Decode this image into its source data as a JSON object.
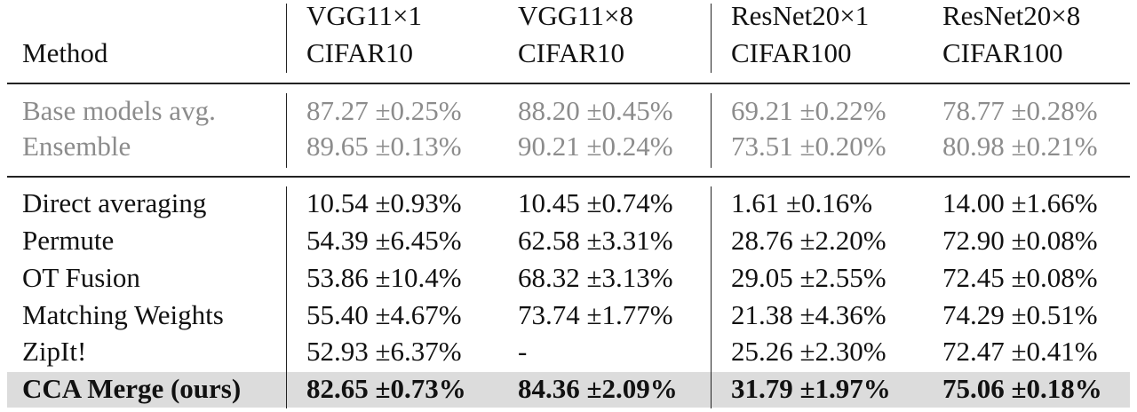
{
  "header": {
    "method_label": "Method",
    "columns": [
      {
        "model": "VGG11×1",
        "dataset": "CIFAR10"
      },
      {
        "model": "VGG11×8",
        "dataset": "CIFAR10"
      },
      {
        "model": "ResNet20×1",
        "dataset": "CIFAR100"
      },
      {
        "model": "ResNet20×8",
        "dataset": "CIFAR100"
      }
    ]
  },
  "reference_rows": [
    {
      "method": "Base models avg.",
      "values": [
        "87.27 ±0.25%",
        "88.20 ±0.45%",
        "69.21 ±0.22%",
        "78.77 ±0.28%"
      ]
    },
    {
      "method": "Ensemble",
      "values": [
        "89.65 ±0.13%",
        "90.21 ±0.24%",
        "73.51 ±0.20%",
        "80.98 ±0.21%"
      ]
    }
  ],
  "method_rows": [
    {
      "method": "Direct averaging",
      "values": [
        "10.54 ±0.93%",
        "10.45 ±0.74%",
        "1.61 ±0.16%",
        "14.00 ±1.66%"
      ]
    },
    {
      "method": "Permute",
      "values": [
        "54.39 ±6.45%",
        "62.58 ±3.31%",
        "28.76 ±2.20%",
        "72.90 ±0.08%"
      ]
    },
    {
      "method": "OT Fusion",
      "values": [
        "53.86 ±10.4%",
        "68.32 ±3.13%",
        "29.05 ±2.55%",
        "72.45 ±0.08%"
      ]
    },
    {
      "method": "Matching Weights",
      "values": [
        "55.40 ±4.67%",
        "73.74 ±1.77%",
        "21.38 ±4.36%",
        "74.29 ±0.51%"
      ]
    },
    {
      "method": "ZipIt!",
      "values": [
        "52.93 ±6.37%",
        "-",
        "25.26 ±2.30%",
        "72.47 ±0.41%"
      ]
    }
  ],
  "highlight_row": {
    "method": "CCA Merge (ours)",
    "values": [
      "82.65 ±0.73%",
      "84.36 ±2.09%",
      "31.79 ±1.97%",
      "75.06 ±0.18%"
    ]
  },
  "colors": {
    "text": "#111111",
    "reference_text": "#8c8c8c",
    "highlight_background": "#dcdcdc"
  }
}
